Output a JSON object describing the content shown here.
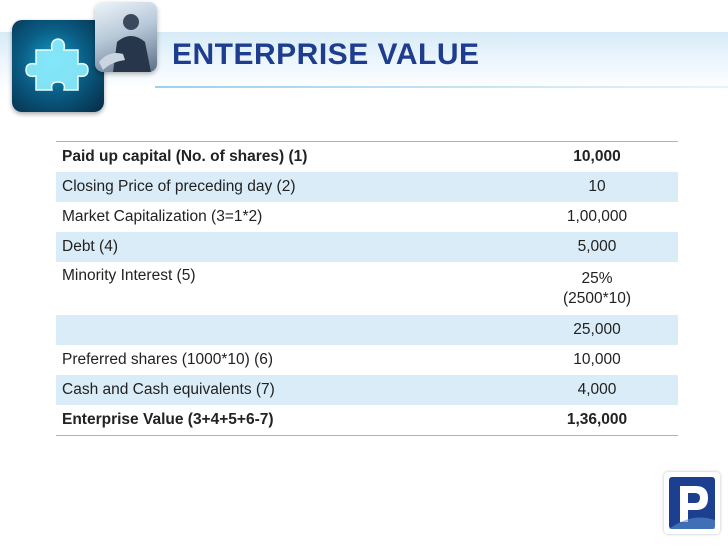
{
  "title": "ENTERPRISE VALUE",
  "colors": {
    "title": "#1f3d8e",
    "row_shade": "#d9ecf7",
    "logo": "#1d3f8f"
  },
  "icons": {
    "header_left": "puzzle-piece-icon",
    "header_photo": "business-person-photo",
    "corner_logo": "p-logo-icon"
  },
  "rows": [
    {
      "label": "Paid up capital (No. of shares) (1)",
      "value": "10,000",
      "value2": ""
    },
    {
      "label": "Closing Price of preceding day (2)",
      "value": "10",
      "value2": ""
    },
    {
      "label": "Market Capitalization (3=1*2)",
      "value": "1,00,000",
      "value2": ""
    },
    {
      "label": "Debt (4)",
      "value": "5,000",
      "value2": ""
    },
    {
      "label": "Minority Interest (5)",
      "value": "25%",
      "value2": "(2500*10)"
    },
    {
      "label": "",
      "value": "25,000",
      "value2": ""
    },
    {
      "label": "Preferred shares (1000*10) (6)",
      "value": "10,000",
      "value2": ""
    },
    {
      "label": "Cash and Cash equivalents (7)",
      "value": "4,000",
      "value2": ""
    },
    {
      "label": "Enterprise Value (3+4+5+6-7)",
      "value": "1,36,000",
      "value2": ""
    }
  ]
}
